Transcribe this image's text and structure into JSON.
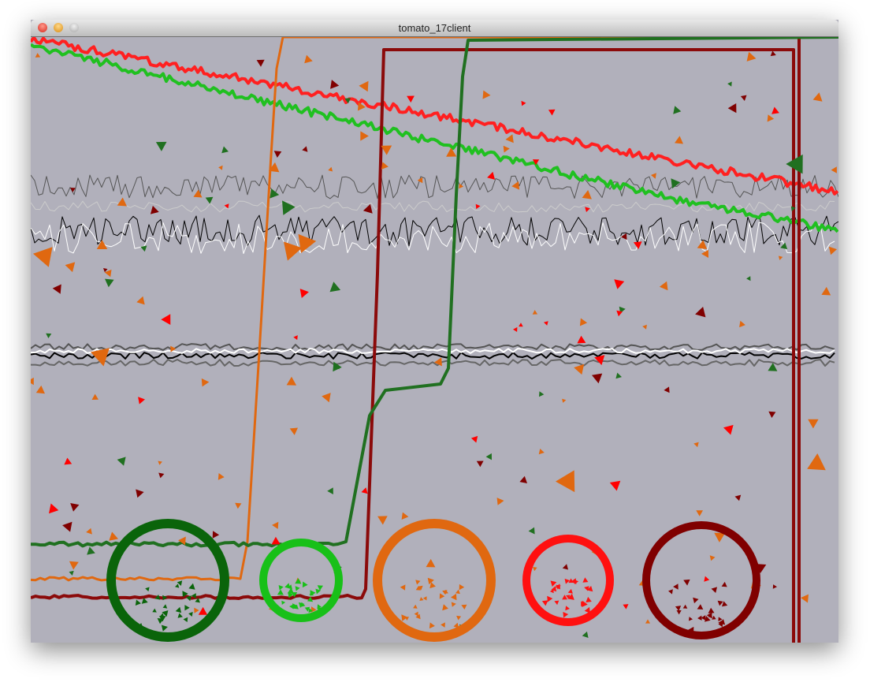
{
  "window": {
    "title": "tomato_17client"
  }
}
